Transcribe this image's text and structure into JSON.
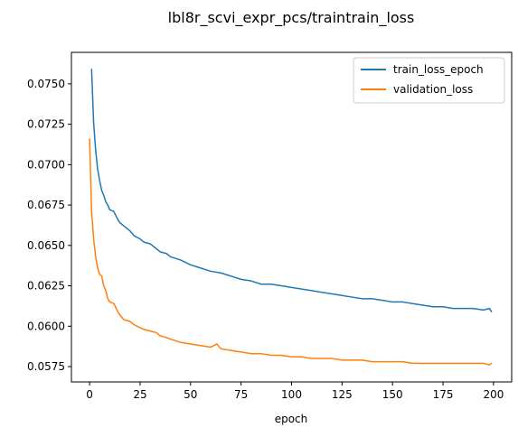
{
  "chart_data": {
    "type": "line",
    "title": "lbl8r_scvi_expr_pcs/traintrain_loss",
    "xlabel": "epoch",
    "ylabel": "",
    "xlim": [
      -9,
      209
    ],
    "ylim": [
      0.05655,
      0.07695
    ],
    "xticks": [
      0,
      25,
      50,
      75,
      100,
      125,
      150,
      175,
      200
    ],
    "yticks": [
      0.0575,
      0.06,
      0.0625,
      0.065,
      0.0675,
      0.07,
      0.0725,
      0.075
    ],
    "ytick_labels": [
      "0.0575",
      "0.0600",
      "0.0625",
      "0.0650",
      "0.0675",
      "0.0700",
      "0.0725",
      "0.0750"
    ],
    "grid": false,
    "legend": "top-right",
    "series": [
      {
        "name": "train_loss_epoch",
        "color": "#1f77b4",
        "x": [
          1,
          2,
          3,
          4,
          5,
          6,
          7,
          8,
          9,
          10,
          12,
          14,
          15,
          17,
          20,
          22,
          25,
          27,
          30,
          33,
          35,
          38,
          40,
          45,
          50,
          55,
          60,
          65,
          70,
          75,
          80,
          85,
          90,
          95,
          100,
          105,
          110,
          115,
          120,
          125,
          130,
          135,
          140,
          145,
          150,
          155,
          160,
          165,
          170,
          175,
          180,
          185,
          190,
          195,
          198,
          199
        ],
        "y": [
          0.0759,
          0.0726,
          0.0709,
          0.0697,
          0.069,
          0.0684,
          0.0681,
          0.0677,
          0.0675,
          0.0672,
          0.0671,
          0.0666,
          0.0664,
          0.0662,
          0.0659,
          0.0656,
          0.0654,
          0.0652,
          0.0651,
          0.0648,
          0.0646,
          0.0645,
          0.0643,
          0.0641,
          0.0638,
          0.0636,
          0.0634,
          0.0633,
          0.0631,
          0.0629,
          0.0628,
          0.0626,
          0.0626,
          0.0625,
          0.0624,
          0.0623,
          0.0622,
          0.0621,
          0.062,
          0.0619,
          0.0618,
          0.0617,
          0.0617,
          0.0616,
          0.0615,
          0.0615,
          0.0614,
          0.0613,
          0.0612,
          0.0612,
          0.0611,
          0.0611,
          0.0611,
          0.061,
          0.0611,
          0.0609
        ]
      },
      {
        "name": "validation_loss",
        "color": "#ff7f0e",
        "x": [
          0,
          1,
          2,
          3,
          4,
          5,
          6,
          7,
          8,
          9,
          10,
          12,
          14,
          15,
          17,
          20,
          22,
          25,
          27,
          30,
          33,
          35,
          38,
          40,
          45,
          50,
          55,
          60,
          63,
          65,
          70,
          75,
          80,
          85,
          90,
          95,
          100,
          105,
          110,
          115,
          120,
          125,
          130,
          135,
          140,
          145,
          150,
          155,
          160,
          165,
          170,
          175,
          180,
          185,
          190,
          195,
          198,
          199
        ],
        "y": [
          0.0716,
          0.0671,
          0.0654,
          0.0643,
          0.0636,
          0.0632,
          0.0631,
          0.0625,
          0.0622,
          0.0617,
          0.0615,
          0.0614,
          0.0609,
          0.0607,
          0.0604,
          0.0603,
          0.0601,
          0.0599,
          0.0598,
          0.0597,
          0.0596,
          0.0594,
          0.0593,
          0.0592,
          0.059,
          0.0589,
          0.0588,
          0.0587,
          0.0589,
          0.0586,
          0.0585,
          0.0584,
          0.0583,
          0.0583,
          0.0582,
          0.0582,
          0.0581,
          0.0581,
          0.058,
          0.058,
          0.058,
          0.0579,
          0.0579,
          0.0579,
          0.0578,
          0.0578,
          0.0578,
          0.0578,
          0.0577,
          0.0577,
          0.0577,
          0.0577,
          0.0577,
          0.0577,
          0.0577,
          0.0577,
          0.0576,
          0.0577
        ]
      }
    ]
  }
}
